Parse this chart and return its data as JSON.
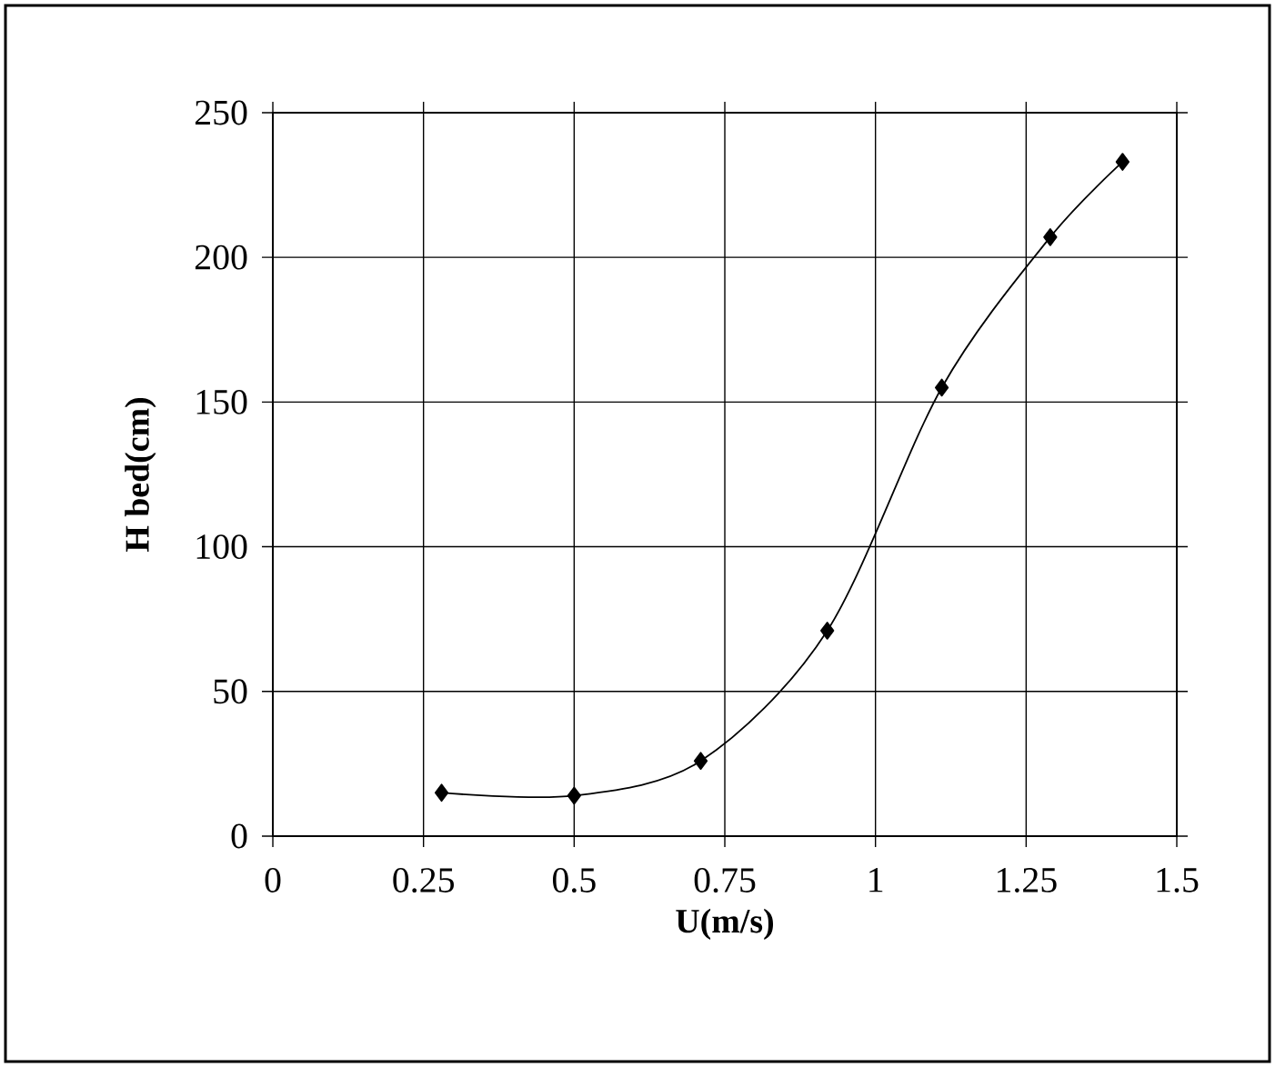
{
  "chart_data": {
    "type": "line",
    "xlabel": "U(m/s)",
    "ylabel": "H bed(cm)",
    "x": [
      0.28,
      0.5,
      0.71,
      0.92,
      1.11,
      1.29,
      1.41
    ],
    "series": [
      {
        "color": "#000000",
        "values": [
          15,
          14,
          26,
          71,
          155,
          207,
          233
        ]
      }
    ],
    "xlim": [
      0,
      1.5
    ],
    "xticks": [
      0,
      0.25,
      0.5,
      0.75,
      1,
      1.25,
      1.5
    ],
    "ylim": [
      0,
      250
    ],
    "yticks": [
      0,
      50,
      100,
      150,
      200,
      250
    ],
    "grid": true,
    "marker": "diamond",
    "line_style": "solid"
  }
}
